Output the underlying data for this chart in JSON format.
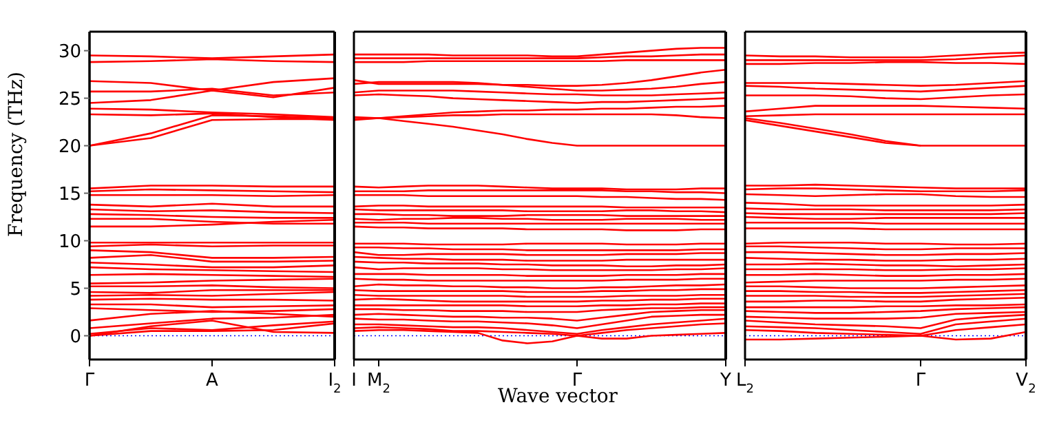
{
  "chart_data": [
    {
      "type": "line",
      "ylabel": "Frequency (THz)",
      "categories": [
        "Γ",
        null,
        "A",
        null,
        "I$_{2}$"
      ],
      "ylim": [
        -2.5,
        32
      ],
      "yticks": [
        0,
        5,
        10,
        15,
        20,
        25,
        30
      ],
      "ref_lines": [
        {
          "axis": "y",
          "value": 0,
          "color": "#0000ff",
          "line_style": "dotted"
        }
      ],
      "series": [
        {
          "color": "#ff0000",
          "values": [
            29.5,
            29.4,
            29.2,
            29.4,
            29.6
          ]
        },
        {
          "color": "#ff0000",
          "values": [
            28.8,
            28.9,
            29.1,
            28.9,
            28.8
          ]
        },
        {
          "color": "#ff0000",
          "values": [
            26.8,
            26.6,
            25.8,
            26.7,
            27.1
          ]
        },
        {
          "color": "#ff0000",
          "values": [
            25.7,
            25.7,
            26.0,
            25.3,
            25.6
          ]
        },
        {
          "color": "#ff0000",
          "values": [
            24.5,
            24.8,
            25.8,
            25.1,
            26.1
          ]
        },
        {
          "color": "#ff0000",
          "values": [
            23.9,
            23.8,
            23.5,
            23.3,
            23.0
          ]
        },
        {
          "color": "#ff0000",
          "values": [
            23.3,
            23.2,
            23.4,
            23.0,
            22.7
          ]
        },
        {
          "color": "#ff0000",
          "values": [
            20.0,
            20.8,
            22.7,
            22.8,
            22.8
          ]
        },
        {
          "color": "#ff0000",
          "values": [
            20.0,
            21.3,
            23.2,
            23.1,
            22.9
          ]
        },
        {
          "color": "#ff0000",
          "values": [
            15.5,
            15.8,
            15.8,
            15.7,
            15.7
          ]
        },
        {
          "color": "#ff0000",
          "values": [
            15.2,
            15.4,
            15.3,
            15.2,
            15.1
          ]
        },
        {
          "color": "#ff0000",
          "values": [
            14.8,
            14.8,
            14.8,
            14.7,
            14.8
          ]
        },
        {
          "color": "#ff0000",
          "values": [
            13.8,
            13.6,
            13.9,
            13.6,
            13.6
          ]
        },
        {
          "color": "#ff0000",
          "values": [
            13.3,
            13.1,
            13.2,
            13.0,
            12.9
          ]
        },
        {
          "color": "#ff0000",
          "values": [
            12.8,
            12.7,
            12.5,
            12.4,
            12.4
          ]
        },
        {
          "color": "#ff0000",
          "values": [
            12.3,
            12.3,
            12.0,
            11.8,
            11.8
          ]
        },
        {
          "color": "#ff0000",
          "values": [
            11.5,
            11.5,
            11.7,
            12.0,
            12.2
          ]
        },
        {
          "color": "#ff0000",
          "values": [
            9.8,
            9.8,
            9.8,
            9.8,
            9.8
          ]
        },
        {
          "color": "#ff0000",
          "values": [
            9.4,
            9.6,
            9.4,
            9.5,
            9.5
          ]
        },
        {
          "color": "#ff0000",
          "values": [
            9.0,
            8.8,
            8.2,
            8.2,
            8.3
          ]
        },
        {
          "color": "#ff0000",
          "values": [
            8.2,
            8.5,
            7.8,
            7.8,
            7.9
          ]
        },
        {
          "color": "#ff0000",
          "values": [
            7.7,
            7.5,
            7.2,
            7.2,
            7.4
          ]
        },
        {
          "color": "#ff0000",
          "values": [
            7.2,
            7.0,
            6.9,
            6.8,
            6.7
          ]
        },
        {
          "color": "#ff0000",
          "values": [
            6.4,
            6.5,
            6.4,
            6.3,
            6.2
          ]
        },
        {
          "color": "#ff0000",
          "values": [
            5.5,
            5.6,
            5.8,
            5.9,
            6.0
          ]
        },
        {
          "color": "#ff0000",
          "values": [
            5.2,
            5.2,
            5.3,
            5.1,
            5.0
          ]
        },
        {
          "color": "#ff0000",
          "values": [
            4.6,
            4.5,
            4.8,
            4.8,
            4.8
          ]
        },
        {
          "color": "#ff0000",
          "values": [
            4.2,
            4.3,
            4.2,
            4.4,
            4.6
          ]
        },
        {
          "color": "#ff0000",
          "values": [
            3.8,
            3.9,
            3.8,
            3.8,
            3.7
          ]
        },
        {
          "color": "#ff0000",
          "values": [
            3.3,
            3.3,
            3.0,
            3.1,
            3.2
          ]
        },
        {
          "color": "#ff0000",
          "values": [
            2.9,
            2.7,
            2.5,
            2.6,
            2.8
          ]
        },
        {
          "color": "#ff0000",
          "values": [
            1.6,
            2.3,
            2.6,
            2.3,
            2.0
          ]
        },
        {
          "color": "#ff0000",
          "values": [
            0.8,
            1.3,
            1.8,
            1.9,
            2.2
          ]
        },
        {
          "color": "#ff0000",
          "values": [
            0.2,
            0.8,
            0.6,
            1.1,
            1.5
          ]
        },
        {
          "color": "#ff0000",
          "values": [
            0.0,
            0.5,
            0.5,
            0.6,
            1.3
          ]
        },
        {
          "color": "#ff0000",
          "values": [
            0.0,
            1.0,
            1.6,
            0.4,
            0.3
          ]
        }
      ]
    },
    {
      "type": "line",
      "xlabel": "Wave vector",
      "tick_labels": "x",
      "categories": [
        "I",
        "M$_{2}$",
        null,
        null,
        null,
        null,
        null,
        null,
        null,
        "Γ",
        null,
        null,
        null,
        null,
        null,
        "Y"
      ],
      "ylim": [
        -2.5,
        32
      ],
      "yticks": [
        0,
        5,
        10,
        15,
        20,
        25,
        30
      ],
      "ref_lines": [
        {
          "axis": "y",
          "value": 0,
          "color": "#0000ff",
          "line_style": "dotted"
        }
      ],
      "series": [
        {
          "color": "#ff0000",
          "values": [
            29.6,
            29.6,
            29.6,
            29.6,
            29.5,
            29.5,
            29.5,
            29.5,
            29.4,
            29.4,
            29.6,
            29.8,
            30.0,
            30.2,
            30.3,
            30.3
          ]
        },
        {
          "color": "#ff0000",
          "values": [
            29.2,
            29.2,
            29.2,
            29.2,
            29.2,
            29.2,
            29.2,
            29.2,
            29.2,
            29.2,
            29.3,
            29.4,
            29.4,
            29.5,
            29.6,
            29.6
          ]
        },
        {
          "color": "#ff0000",
          "values": [
            28.8,
            28.8,
            28.8,
            28.9,
            28.9,
            28.9,
            28.9,
            28.9,
            28.9,
            28.9,
            28.9,
            29.0,
            29.0,
            29.0,
            29.0,
            29.0
          ]
        },
        {
          "color": "#ff0000",
          "values": [
            26.9,
            26.5,
            26.5,
            26.5,
            26.5,
            26.5,
            26.4,
            26.4,
            26.3,
            26.3,
            26.4,
            26.6,
            26.9,
            27.3,
            27.7,
            28.0
          ]
        },
        {
          "color": "#ff0000",
          "values": [
            26.5,
            26.7,
            26.7,
            26.7,
            26.7,
            26.6,
            26.4,
            26.2,
            26.0,
            25.8,
            25.8,
            25.9,
            26.0,
            26.2,
            26.5,
            26.7
          ]
        },
        {
          "color": "#ff0000",
          "values": [
            25.6,
            25.8,
            25.8,
            25.8,
            25.8,
            25.7,
            25.6,
            25.5,
            25.4,
            25.4,
            25.3,
            25.3,
            25.3,
            25.4,
            25.5,
            25.6
          ]
        },
        {
          "color": "#ff0000",
          "values": [
            25.3,
            25.4,
            25.3,
            25.2,
            25.0,
            24.9,
            24.8,
            24.7,
            24.6,
            24.5,
            24.6,
            24.6,
            24.7,
            24.8,
            24.9,
            25.0
          ]
        },
        {
          "color": "#ff0000",
          "values": [
            23.0,
            22.9,
            23.1,
            23.3,
            23.5,
            23.6,
            23.7,
            23.7,
            23.8,
            23.8,
            23.9,
            23.9,
            24.0,
            24.1,
            24.1,
            24.2
          ]
        },
        {
          "color": "#ff0000",
          "values": [
            22.8,
            22.9,
            23.0,
            23.1,
            23.2,
            23.2,
            23.3,
            23.3,
            23.3,
            23.3,
            23.3,
            23.3,
            23.3,
            23.2,
            23.0,
            22.9
          ]
        },
        {
          "color": "#ff0000",
          "values": [
            22.7,
            22.9,
            22.6,
            22.3,
            22.0,
            21.6,
            21.2,
            20.7,
            20.3,
            20.0,
            20.0,
            20.0,
            20.0,
            20.0,
            20.0,
            20.0
          ]
        },
        {
          "color": "#ff0000",
          "values": [
            15.7,
            15.6,
            15.7,
            15.8,
            15.8,
            15.8,
            15.7,
            15.6,
            15.5,
            15.5,
            15.5,
            15.4,
            15.4,
            15.4,
            15.5,
            15.5
          ]
        },
        {
          "color": "#ff0000",
          "values": [
            15.2,
            15.2,
            15.2,
            15.3,
            15.3,
            15.3,
            15.3,
            15.3,
            15.3,
            15.3,
            15.3,
            15.2,
            15.2,
            15.1,
            15.1,
            15.0
          ]
        },
        {
          "color": "#ff0000",
          "values": [
            14.8,
            14.8,
            14.8,
            14.7,
            14.7,
            14.7,
            14.7,
            14.7,
            14.7,
            14.7,
            14.6,
            14.6,
            14.5,
            14.4,
            14.4,
            14.3
          ]
        },
        {
          "color": "#ff0000",
          "values": [
            13.6,
            13.7,
            13.7,
            13.6,
            13.6,
            13.6,
            13.6,
            13.6,
            13.6,
            13.6,
            13.6,
            13.5,
            13.5,
            13.5,
            13.5,
            13.5
          ]
        },
        {
          "color": "#ff0000",
          "values": [
            13.3,
            13.2,
            13.2,
            13.2,
            13.2,
            13.2,
            13.2,
            13.1,
            13.1,
            13.1,
            13.1,
            13.2,
            13.2,
            13.1,
            13.1,
            13.0
          ]
        },
        {
          "color": "#ff0000",
          "values": [
            12.8,
            12.8,
            12.7,
            12.7,
            12.6,
            12.6,
            12.6,
            12.7,
            12.7,
            12.7,
            12.7,
            12.6,
            12.6,
            12.6,
            12.6,
            12.6
          ]
        },
        {
          "color": "#ff0000",
          "values": [
            12.3,
            12.2,
            12.3,
            12.3,
            12.4,
            12.4,
            12.3,
            12.3,
            12.2,
            12.2,
            12.2,
            12.3,
            12.3,
            12.3,
            12.2,
            12.2
          ]
        },
        {
          "color": "#ff0000",
          "values": [
            11.9,
            11.9,
            11.9,
            11.8,
            11.8,
            11.8,
            11.8,
            11.8,
            11.8,
            11.8,
            11.8,
            11.8,
            11.8,
            11.8,
            11.8,
            11.8
          ]
        },
        {
          "color": "#ff0000",
          "values": [
            11.5,
            11.4,
            11.4,
            11.3,
            11.3,
            11.3,
            11.3,
            11.2,
            11.2,
            11.2,
            11.2,
            11.1,
            11.1,
            11.1,
            11.2,
            11.2
          ]
        },
        {
          "color": "#ff0000",
          "values": [
            9.7,
            9.7,
            9.7,
            9.6,
            9.6,
            9.6,
            9.6,
            9.7,
            9.7,
            9.7,
            9.7,
            9.6,
            9.6,
            9.6,
            9.7,
            9.7
          ]
        },
        {
          "color": "#ff0000",
          "values": [
            9.3,
            9.3,
            9.2,
            9.2,
            9.1,
            9.1,
            9.1,
            9.0,
            9.0,
            9.0,
            9.0,
            9.0,
            9.0,
            9.0,
            9.1,
            9.1
          ]
        },
        {
          "color": "#ff0000",
          "values": [
            8.8,
            8.5,
            8.5,
            8.6,
            8.6,
            8.6,
            8.6,
            8.5,
            8.5,
            8.5,
            8.5,
            8.6,
            8.6,
            8.6,
            8.7,
            8.7
          ]
        },
        {
          "color": "#ff0000",
          "values": [
            8.3,
            8.2,
            8.1,
            8.1,
            8.0,
            8.0,
            8.0,
            7.9,
            7.9,
            7.9,
            7.9,
            8.0,
            8.0,
            8.0,
            8.0,
            8.0
          ]
        },
        {
          "color": "#ff0000",
          "values": [
            7.8,
            7.7,
            7.7,
            7.6,
            7.6,
            7.6,
            7.5,
            7.5,
            7.4,
            7.4,
            7.4,
            7.3,
            7.3,
            7.4,
            7.4,
            7.5
          ]
        },
        {
          "color": "#ff0000",
          "values": [
            7.2,
            7.0,
            7.1,
            7.1,
            7.1,
            7.1,
            7.0,
            7.0,
            6.9,
            6.9,
            6.9,
            6.9,
            6.9,
            7.0,
            7.0,
            7.1
          ]
        },
        {
          "color": "#ff0000",
          "values": [
            6.5,
            6.5,
            6.5,
            6.4,
            6.4,
            6.4,
            6.4,
            6.3,
            6.3,
            6.3,
            6.3,
            6.4,
            6.4,
            6.4,
            6.5,
            6.5
          ]
        },
        {
          "color": "#ff0000",
          "values": [
            6.0,
            5.9,
            5.9,
            5.8,
            5.8,
            5.8,
            5.8,
            5.8,
            5.8,
            5.8,
            5.8,
            5.9,
            5.9,
            5.9,
            6.0,
            6.0
          ]
        },
        {
          "color": "#ff0000",
          "values": [
            5.2,
            5.4,
            5.3,
            5.3,
            5.2,
            5.2,
            5.1,
            5.1,
            5.0,
            5.0,
            5.1,
            5.1,
            5.2,
            5.3,
            5.3,
            5.4
          ]
        },
        {
          "color": "#ff0000",
          "values": [
            4.8,
            4.7,
            4.7,
            4.7,
            4.7,
            4.7,
            4.7,
            4.6,
            4.6,
            4.6,
            4.7,
            4.7,
            4.8,
            4.8,
            4.9,
            4.9
          ]
        },
        {
          "color": "#ff0000",
          "values": [
            4.3,
            4.2,
            4.2,
            4.2,
            4.2,
            4.2,
            4.2,
            4.1,
            4.1,
            4.1,
            4.1,
            4.2,
            4.2,
            4.2,
            4.3,
            4.3
          ]
        },
        {
          "color": "#ff0000",
          "values": [
            3.8,
            3.9,
            3.8,
            3.7,
            3.6,
            3.6,
            3.6,
            3.6,
            3.6,
            3.6,
            3.7,
            3.7,
            3.8,
            3.8,
            3.9,
            3.9
          ]
        },
        {
          "color": "#ff0000",
          "values": [
            3.2,
            3.2,
            3.2,
            3.2,
            3.2,
            3.2,
            3.2,
            3.1,
            3.1,
            3.1,
            3.2,
            3.2,
            3.3,
            3.3,
            3.4,
            3.4
          ]
        },
        {
          "color": "#ff0000",
          "values": [
            2.8,
            2.8,
            2.7,
            2.7,
            2.6,
            2.6,
            2.6,
            2.5,
            2.5,
            2.5,
            2.7,
            2.8,
            2.9,
            2.9,
            3.0,
            3.0
          ]
        },
        {
          "color": "#ff0000",
          "values": [
            2.2,
            2.3,
            2.2,
            2.1,
            2.0,
            2.0,
            1.9,
            1.9,
            1.8,
            1.6,
            1.9,
            2.2,
            2.5,
            2.6,
            2.7,
            2.7
          ]
        },
        {
          "color": "#ff0000",
          "values": [
            1.8,
            1.7,
            1.7,
            1.6,
            1.5,
            1.5,
            1.4,
            1.3,
            1.1,
            0.8,
            1.2,
            1.6,
            2.0,
            2.1,
            2.2,
            2.2
          ]
        },
        {
          "color": "#ff0000",
          "values": [
            1.2,
            1.2,
            1.1,
            1.0,
            0.9,
            0.9,
            0.8,
            0.6,
            0.4,
            0.2,
            0.6,
            0.9,
            1.2,
            1.4,
            1.6,
            1.8
          ]
        },
        {
          "color": "#ff0000",
          "values": [
            0.8,
            0.9,
            0.8,
            0.7,
            0.5,
            0.5,
            0.4,
            0.3,
            0.2,
            0.0,
            0.3,
            0.6,
            0.8,
            1.0,
            1.2,
            1.3
          ]
        },
        {
          "color": "#ff0000",
          "values": [
            0.5,
            0.6,
            0.6,
            0.5,
            0.4,
            0.3,
            -0.5,
            -0.8,
            -0.6,
            0.0,
            -0.3,
            -0.3,
            0.0,
            0.1,
            0.2,
            0.3
          ]
        }
      ]
    },
    {
      "type": "line",
      "tick_labels": "x",
      "categories": [
        "L$_{2}$",
        null,
        null,
        null,
        null,
        "Γ",
        null,
        null,
        "V$_{2}$"
      ],
      "ylim": [
        -2.5,
        32
      ],
      "yticks": [
        0,
        5,
        10,
        15,
        20,
        25,
        30
      ],
      "ref_lines": [
        {
          "axis": "y",
          "value": 0,
          "color": "#0000ff",
          "line_style": "dotted"
        }
      ],
      "series": [
        {
          "color": "#ff0000",
          "values": [
            29.5,
            29.4,
            29.4,
            29.3,
            29.3,
            29.3,
            29.5,
            29.7,
            29.8
          ]
        },
        {
          "color": "#ff0000",
          "values": [
            29.0,
            29.0,
            29.0,
            29.0,
            29.0,
            29.0,
            29.1,
            29.3,
            29.5
          ]
        },
        {
          "color": "#ff0000",
          "values": [
            28.6,
            28.6,
            28.7,
            28.7,
            28.8,
            28.8,
            28.7,
            28.7,
            28.6
          ]
        },
        {
          "color": "#ff0000",
          "values": [
            26.6,
            26.6,
            26.6,
            26.5,
            26.4,
            26.3,
            26.4,
            26.6,
            26.8
          ]
        },
        {
          "color": "#ff0000",
          "values": [
            26.3,
            26.2,
            26.0,
            25.9,
            25.8,
            25.7,
            25.9,
            26.1,
            26.3
          ]
        },
        {
          "color": "#ff0000",
          "values": [
            25.3,
            25.3,
            25.3,
            25.2,
            25.0,
            24.9,
            25.1,
            25.3,
            25.4
          ]
        },
        {
          "color": "#ff0000",
          "values": [
            23.6,
            23.9,
            24.2,
            24.2,
            24.2,
            24.2,
            24.1,
            24.0,
            23.9
          ]
        },
        {
          "color": "#ff0000",
          "values": [
            23.1,
            23.2,
            23.3,
            23.3,
            23.3,
            23.3,
            23.3,
            23.3,
            23.3
          ]
        },
        {
          "color": "#ff0000",
          "values": [
            22.9,
            22.4,
            21.8,
            21.2,
            20.5,
            20.0,
            20.0,
            20.0,
            20.0
          ]
        },
        {
          "color": "#ff0000",
          "values": [
            22.7,
            22.1,
            21.5,
            20.9,
            20.3,
            20.0,
            null,
            null,
            null
          ]
        },
        {
          "color": "#ff0000",
          "values": [
            15.8,
            15.8,
            15.9,
            15.8,
            15.7,
            15.6,
            15.5,
            15.5,
            15.5
          ]
        },
        {
          "color": "#ff0000",
          "values": [
            15.4,
            15.5,
            15.5,
            15.4,
            15.3,
            15.2,
            15.2,
            15.2,
            15.3
          ]
        },
        {
          "color": "#ff0000",
          "values": [
            14.9,
            14.8,
            14.7,
            14.8,
            14.9,
            14.9,
            14.7,
            14.6,
            14.6
          ]
        },
        {
          "color": "#ff0000",
          "values": [
            14.0,
            13.9,
            13.7,
            13.7,
            13.7,
            13.7,
            13.7,
            13.7,
            13.8
          ]
        },
        {
          "color": "#ff0000",
          "values": [
            13.4,
            13.3,
            13.3,
            13.3,
            13.2,
            13.2,
            13.2,
            13.2,
            13.3
          ]
        },
        {
          "color": "#ff0000",
          "values": [
            12.9,
            12.8,
            12.8,
            12.8,
            12.8,
            12.8,
            12.8,
            12.8,
            12.9
          ]
        },
        {
          "color": "#ff0000",
          "values": [
            12.5,
            12.4,
            12.3,
            12.3,
            12.4,
            12.4,
            12.4,
            12.4,
            12.4
          ]
        },
        {
          "color": "#ff0000",
          "values": [
            11.9,
            11.9,
            11.9,
            11.9,
            11.8,
            11.8,
            11.8,
            11.8,
            11.8
          ]
        },
        {
          "color": "#ff0000",
          "values": [
            11.3,
            11.3,
            11.3,
            11.3,
            11.2,
            11.2,
            11.2,
            11.2,
            11.2
          ]
        },
        {
          "color": "#ff0000",
          "values": [
            9.7,
            9.8,
            9.8,
            9.8,
            9.7,
            9.7,
            9.6,
            9.6,
            9.7
          ]
        },
        {
          "color": "#ff0000",
          "values": [
            9.4,
            9.4,
            9.3,
            9.2,
            9.1,
            9.1,
            9.2,
            9.2,
            9.2
          ]
        },
        {
          "color": "#ff0000",
          "values": [
            8.8,
            8.8,
            8.7,
            8.6,
            8.5,
            8.5,
            8.6,
            8.6,
            8.7
          ]
        },
        {
          "color": "#ff0000",
          "values": [
            8.2,
            8.1,
            8.0,
            8.0,
            7.9,
            7.9,
            8.0,
            8.0,
            8.1
          ]
        },
        {
          "color": "#ff0000",
          "values": [
            7.5,
            7.5,
            7.6,
            7.5,
            7.4,
            7.4,
            7.3,
            7.4,
            7.5
          ]
        },
        {
          "color": "#ff0000",
          "values": [
            7.0,
            7.0,
            7.0,
            7.0,
            6.9,
            6.9,
            7.0,
            7.0,
            7.1
          ]
        },
        {
          "color": "#ff0000",
          "values": [
            6.4,
            6.4,
            6.5,
            6.4,
            6.3,
            6.3,
            6.4,
            6.4,
            6.5
          ]
        },
        {
          "color": "#ff0000",
          "values": [
            5.6,
            5.7,
            5.8,
            5.8,
            5.8,
            5.8,
            5.9,
            5.9,
            6.0
          ]
        },
        {
          "color": "#ff0000",
          "values": [
            5.2,
            5.2,
            5.1,
            5.0,
            5.0,
            5.0,
            5.1,
            5.2,
            5.3
          ]
        },
        {
          "color": "#ff0000",
          "values": [
            4.7,
            4.7,
            4.6,
            4.6,
            4.5,
            4.5,
            4.6,
            4.7,
            4.8
          ]
        },
        {
          "color": "#ff0000",
          "values": [
            4.2,
            4.2,
            4.2,
            4.1,
            4.1,
            4.1,
            4.2,
            4.3,
            4.4
          ]
        },
        {
          "color": "#ff0000",
          "values": [
            3.6,
            3.6,
            3.7,
            3.7,
            3.6,
            3.6,
            3.8,
            3.9,
            4.0
          ]
        },
        {
          "color": "#ff0000",
          "values": [
            3.0,
            3.0,
            3.0,
            3.0,
            3.1,
            3.1,
            3.2,
            3.2,
            3.3
          ]
        },
        {
          "color": "#ff0000",
          "values": [
            2.6,
            2.5,
            2.4,
            2.4,
            2.5,
            2.6,
            2.8,
            2.9,
            3.0
          ]
        },
        {
          "color": "#ff0000",
          "values": [
            2.0,
            1.9,
            1.8,
            1.8,
            1.8,
            1.9,
            2.3,
            2.4,
            2.5
          ]
        },
        {
          "color": "#ff0000",
          "values": [
            1.6,
            1.4,
            1.2,
            1.1,
            1.0,
            0.8,
            1.7,
            2.0,
            2.2
          ]
        },
        {
          "color": "#ff0000",
          "values": [
            1.0,
            0.9,
            0.8,
            0.6,
            0.4,
            0.2,
            1.2,
            1.5,
            1.8
          ]
        },
        {
          "color": "#ff0000",
          "values": [
            0.6,
            0.5,
            0.3,
            0.2,
            0.1,
            0.0,
            0.6,
            0.9,
            1.2
          ]
        },
        {
          "color": "#ff0000",
          "values": [
            -0.4,
            -0.4,
            -0.3,
            -0.2,
            -0.1,
            0.0,
            -0.4,
            -0.3,
            0.4
          ]
        }
      ]
    }
  ]
}
